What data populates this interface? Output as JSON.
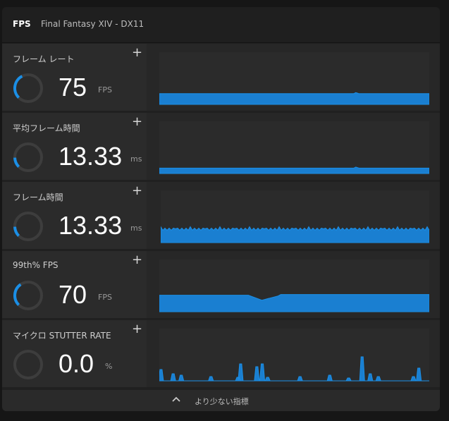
{
  "header": {
    "fps_tab": "FPS",
    "game": "Final Fantasy XIV - DX11"
  },
  "colors": {
    "accent": "#1b8fe6",
    "accent_fill": "#1a7fd1",
    "graph_bg": "#2b2b2b"
  },
  "metrics": [
    {
      "label": "フレーム レート",
      "value": "75",
      "unit": "FPS",
      "add_icon": "plus-icon",
      "gauge_fraction": 0.3,
      "graph_level": 0.2,
      "graph_shape": "flat"
    },
    {
      "label": "平均フレーム時間",
      "value": "13.33",
      "unit": "ms",
      "add_icon": "plus-icon",
      "gauge_fraction": 0.12,
      "graph_level": 0.1,
      "graph_shape": "flat"
    },
    {
      "label": "フレーム時間",
      "value": "13.33",
      "unit": "ms",
      "add_icon": "plus-icon",
      "gauge_fraction": 0.12,
      "graph_level": 0.27,
      "graph_shape": "jagged"
    },
    {
      "label": "99th% FPS",
      "value": "70",
      "unit": "FPS",
      "add_icon": "plus-icon",
      "gauge_fraction": 0.28,
      "graph_level": 0.32,
      "graph_shape": "dip"
    },
    {
      "label": "マイクロ STUTTER RATE",
      "value": "0.0",
      "unit": "%",
      "add_icon": "plus-icon",
      "gauge_fraction": 0.0,
      "graph_level": 0.0,
      "graph_shape": "spikes"
    }
  ],
  "footer": {
    "label": "より少ない指標",
    "icon": "chevron-up-icon"
  }
}
